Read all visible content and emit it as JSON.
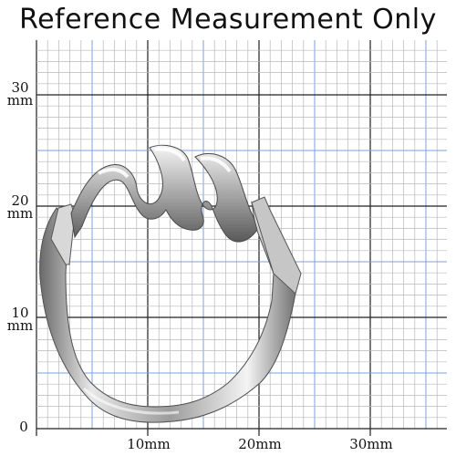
{
  "header": {
    "title": "Reference Measurement Only"
  },
  "scale": {
    "unit": "mm",
    "y_labels": [
      {
        "value": "30",
        "unit": "mm"
      },
      {
        "value": "20",
        "unit": "mm"
      },
      {
        "value": "10",
        "unit": "mm"
      },
      {
        "value": "0",
        "unit": ""
      }
    ],
    "x_labels": [
      "10mm",
      "20mm",
      "30mm"
    ]
  },
  "colors": {
    "minor_grid": "#b8b8b8",
    "major_grid": "#202020",
    "blue_grid": "#7ea0d8",
    "ring_highlight": "#f2f2f2",
    "ring_mid": "#bdbdbd",
    "ring_shadow": "#5f5f5f"
  }
}
